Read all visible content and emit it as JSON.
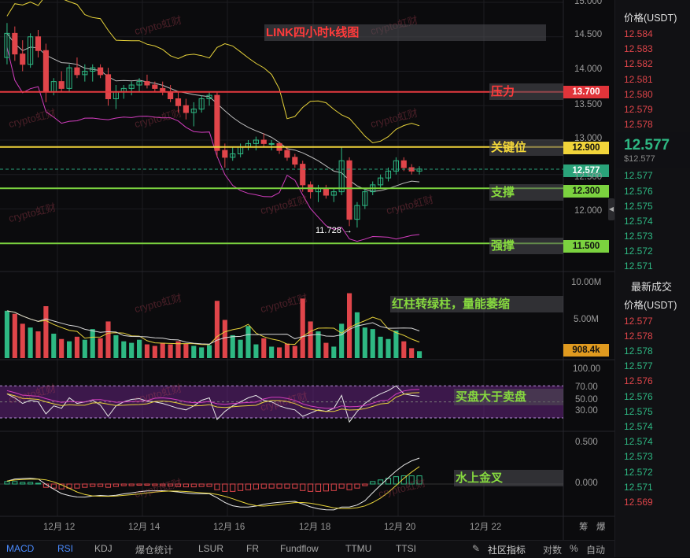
{
  "chart_data": {
    "type": "candlestick",
    "title": "LINK四小时k线图",
    "x_ticks": [
      "12月 12",
      "12月 14",
      "12月 16",
      "12月 18",
      "12月 20",
      "12月 22"
    ],
    "price_axis": {
      "ticks": [
        "15.000",
        "14.500",
        "14.000",
        "13.500",
        "13.000",
        "12.500",
        "12.000"
      ],
      "ylim": [
        11.5,
        15.0
      ]
    },
    "volume_axis": {
      "ticks": [
        "10.00M",
        "5.00M"
      ],
      "current_volume": "908.4k"
    },
    "rsi_axis": {
      "ticks": [
        "100.00",
        "70.00",
        "50.00",
        "30.00"
      ]
    },
    "macd_axis": {
      "ticks": [
        "0.500",
        "0.000"
      ]
    },
    "lows": {
      "label": "11.728 →"
    },
    "levels": [
      {
        "name": "压力",
        "price_label": "13.700",
        "price": 13.7,
        "color": "#e53a3f"
      },
      {
        "name": "关键位",
        "price_label": "12.900",
        "price": 12.9,
        "color": "#f1d43a"
      },
      {
        "name": "支撑",
        "price_label": "12.300",
        "price": 12.3,
        "color": "#7bd23f"
      },
      {
        "name": "强撑",
        "price_label": "11.500",
        "price": 11.5,
        "color": "#7bd23f"
      }
    ],
    "current_price": {
      "price": 12.577,
      "label": "12.577"
    },
    "annotations": {
      "volume": "红柱转绿柱，量能萎缩",
      "rsi": "买盘大于卖盘",
      "macd": "水上金叉"
    },
    "candles": [
      [
        14.2,
        14.7,
        14.1,
        14.55
      ],
      [
        14.55,
        14.65,
        14.15,
        14.25
      ],
      [
        14.25,
        14.45,
        14.0,
        14.1
      ],
      [
        14.1,
        14.55,
        14.05,
        14.5
      ],
      [
        14.5,
        14.6,
        14.2,
        14.3
      ],
      [
        14.3,
        14.4,
        13.55,
        13.7
      ],
      [
        13.7,
        13.9,
        13.65,
        13.85
      ],
      [
        13.85,
        14.0,
        13.7,
        13.75
      ],
      [
        13.75,
        14.1,
        13.7,
        14.05
      ],
      [
        14.05,
        14.2,
        13.9,
        13.95
      ],
      [
        13.95,
        14.1,
        13.85,
        14.0
      ],
      [
        14.0,
        14.1,
        13.85,
        14.05
      ],
      [
        14.05,
        14.1,
        13.9,
        13.95
      ],
      [
        13.95,
        14.05,
        13.5,
        13.6
      ],
      [
        13.6,
        13.8,
        13.45,
        13.7
      ],
      [
        13.7,
        13.8,
        13.6,
        13.75
      ],
      [
        13.75,
        13.85,
        13.65,
        13.8
      ],
      [
        13.8,
        13.9,
        13.7,
        13.85
      ],
      [
        13.85,
        13.95,
        13.75,
        13.8
      ],
      [
        13.8,
        13.85,
        13.7,
        13.75
      ],
      [
        13.75,
        13.85,
        13.65,
        13.7
      ],
      [
        13.7,
        13.8,
        13.55,
        13.6
      ],
      [
        13.6,
        13.7,
        13.4,
        13.5
      ],
      [
        13.5,
        13.6,
        13.3,
        13.4
      ],
      [
        13.4,
        13.55,
        13.2,
        13.45
      ],
      [
        13.45,
        13.65,
        13.4,
        13.6
      ],
      [
        13.6,
        13.7,
        13.5,
        13.65
      ],
      [
        13.65,
        13.7,
        12.75,
        12.85
      ],
      [
        12.85,
        12.95,
        12.6,
        12.75
      ],
      [
        12.75,
        12.9,
        12.7,
        12.8
      ],
      [
        12.8,
        12.95,
        12.75,
        12.9
      ],
      [
        12.9,
        13.0,
        12.85,
        12.95
      ],
      [
        12.95,
        13.05,
        12.85,
        13.0
      ],
      [
        13.0,
        13.1,
        12.9,
        12.95
      ],
      [
        12.95,
        13.0,
        12.85,
        12.95
      ],
      [
        12.95,
        12.95,
        12.8,
        12.85
      ],
      [
        12.85,
        12.9,
        12.7,
        12.75
      ],
      [
        12.75,
        12.8,
        12.6,
        12.65
      ],
      [
        12.65,
        12.7,
        12.25,
        12.35
      ],
      [
        12.35,
        12.4,
        12.15,
        12.25
      ],
      [
        12.25,
        12.35,
        12.1,
        12.3
      ],
      [
        12.3,
        12.35,
        12.15,
        12.2
      ],
      [
        12.2,
        12.3,
        12.1,
        12.25
      ],
      [
        12.25,
        12.9,
        12.2,
        12.7
      ],
      [
        12.7,
        12.75,
        11.75,
        11.85
      ],
      [
        11.85,
        12.1,
        11.73,
        12.05
      ],
      [
        12.05,
        12.3,
        12.0,
        12.25
      ],
      [
        12.25,
        12.4,
        12.2,
        12.35
      ],
      [
        12.35,
        12.5,
        12.3,
        12.45
      ],
      [
        12.45,
        12.6,
        12.4,
        12.55
      ],
      [
        12.55,
        12.75,
        12.5,
        12.7
      ],
      [
        12.7,
        12.75,
        12.55,
        12.6
      ],
      [
        12.6,
        12.65,
        12.5,
        12.55
      ],
      [
        12.55,
        12.62,
        12.5,
        12.58
      ]
    ],
    "volumes_m": [
      6.2,
      5.8,
      4.5,
      4.0,
      3.5,
      6.8,
      3.2,
      2.5,
      2.2,
      2.8,
      2.4,
      3.8,
      2.6,
      4.8,
      3.0,
      2.2,
      2.0,
      2.4,
      1.8,
      1.6,
      2.0,
      1.8,
      2.2,
      1.9,
      1.6,
      1.4,
      1.7,
      7.5,
      5.0,
      3.0,
      2.4,
      4.2,
      1.8,
      2.6,
      1.5,
      1.4,
      1.9,
      1.6,
      7.8,
      4.8,
      3.5,
      2.0,
      1.5,
      4.5,
      8.5,
      6.0,
      4.0,
      3.8,
      2.8,
      2.5,
      3.6,
      2.2,
      1.3,
      0.9
    ],
    "rsi": [
      60,
      55,
      48,
      52,
      50,
      35,
      45,
      42,
      55,
      48,
      50,
      52,
      46,
      32,
      45,
      50,
      53,
      54,
      51,
      50,
      48,
      45,
      42,
      40,
      45,
      52,
      55,
      28,
      38,
      45,
      50,
      55,
      58,
      52,
      50,
      45,
      42,
      40,
      32,
      36,
      40,
      38,
      42,
      58,
      25,
      38,
      48,
      55,
      60,
      64,
      70,
      60,
      58,
      57
    ],
    "macd_hist": [
      0.03,
      0.03,
      0.02,
      0.02,
      0.01,
      -0.04,
      -0.05,
      -0.06,
      -0.05,
      -0.05,
      -0.04,
      -0.03,
      -0.03,
      -0.04,
      -0.03,
      -0.02,
      -0.02,
      -0.015,
      -0.015,
      -0.02,
      -0.02,
      -0.025,
      -0.03,
      -0.035,
      -0.035,
      -0.03,
      -0.03,
      -0.07,
      -0.09,
      -0.09,
      -0.08,
      -0.07,
      -0.06,
      -0.05,
      -0.05,
      -0.05,
      -0.05,
      -0.05,
      -0.08,
      -0.09,
      -0.09,
      -0.085,
      -0.08,
      -0.05,
      -0.07,
      -0.05,
      -0.02,
      0.03,
      0.05,
      0.07,
      0.09,
      0.1,
      0.1,
      0.1
    ]
  },
  "watermark": "crypto虹财",
  "orderbook": {
    "header": "价格(USDT)",
    "asks": [
      "12.584",
      "12.583",
      "12.582",
      "12.581",
      "12.580",
      "12.579",
      "12.578"
    ],
    "last_price": "12.577",
    "last_usd": "$12.577",
    "bids": [
      "12.577",
      "12.576",
      "12.575",
      "12.574",
      "12.573",
      "12.572",
      "12.571"
    ]
  },
  "trades": {
    "title": "最新成交",
    "header": "价格(USDT)",
    "rows": [
      {
        "price": "12.577",
        "side": "sell"
      },
      {
        "price": "12.578",
        "side": "sell"
      },
      {
        "price": "12.578",
        "side": "buy"
      },
      {
        "price": "12.577",
        "side": "buy"
      },
      {
        "price": "12.576",
        "side": "sell"
      },
      {
        "price": "12.576",
        "side": "buy"
      },
      {
        "price": "12.575",
        "side": "buy"
      },
      {
        "price": "12.574",
        "side": "buy"
      },
      {
        "price": "12.574",
        "side": "buy"
      },
      {
        "price": "12.573",
        "side": "buy"
      },
      {
        "price": "12.572",
        "side": "buy"
      },
      {
        "price": "12.571",
        "side": "buy"
      },
      {
        "price": "12.569",
        "side": "sell"
      }
    ]
  },
  "bottom_tabs": {
    "indicators": [
      "MACD",
      "RSI",
      "KDJ",
      "爆仓统计",
      "LSUR",
      "FR",
      "Fundflow",
      "TTMU",
      "TTSI"
    ],
    "community": "社区指标",
    "log": "对数",
    "percent": "%",
    "auto": "自动"
  },
  "corner": {
    "fill": "筹",
    "liquidation": "爆"
  },
  "colors": {
    "up": "#2eb883",
    "down": "#e0454a",
    "bb_upper": "#e6d23a",
    "bb_mid": "#bdbdbd",
    "bb_lower": "#d23dbe"
  }
}
